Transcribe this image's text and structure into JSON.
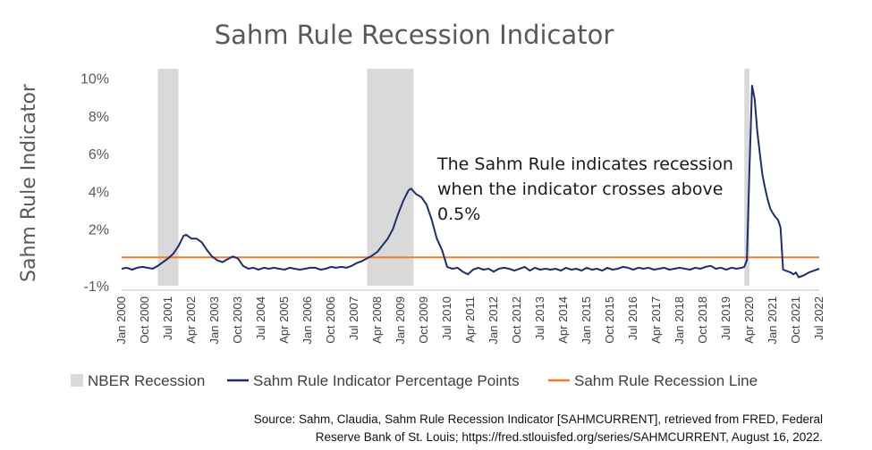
{
  "chart_data": {
    "type": "line",
    "title": "Sahm Rule Recession Indicator",
    "ylabel": "Sahm Rule Indicator",
    "xlabel": "",
    "ylim": [
      -1,
      10.5
    ],
    "yticks": [
      {
        "value": -1,
        "label": "-1%"
      },
      {
        "value": 2,
        "label": "2%"
      },
      {
        "value": 4,
        "label": "4%"
      },
      {
        "value": 6,
        "label": "6%"
      },
      {
        "value": 8,
        "label": "8%"
      },
      {
        "value": 10,
        "label": "10%"
      }
    ],
    "xticks": [
      "Jan 2000",
      "Oct 2000",
      "Jul 2001",
      "Apr 2002",
      "Jan 2003",
      "Oct 2003",
      "Jul 2004",
      "Apr 2005",
      "Jan 2006",
      "Oct 2006",
      "Jul 2007",
      "Apr 2008",
      "Jan 2009",
      "Oct 2009",
      "Jul 2010",
      "Apr 2011",
      "Jan 2012",
      "Oct 2012",
      "Jul 2013",
      "Apr 2014",
      "Jan 2015",
      "Oct 2015",
      "Jul 2016",
      "Apr 2017",
      "Jan 2018",
      "Oct 2018",
      "Jul 2019",
      "Apr 2020",
      "Jan 2021",
      "Oct 2021",
      "Jul 2022"
    ],
    "recessions": [
      {
        "start": "2001-03",
        "end": "2001-11"
      },
      {
        "start": "2007-12",
        "end": "2009-06"
      },
      {
        "start": "2020-02",
        "end": "2020-04"
      }
    ],
    "recession_line": 0.5,
    "series": [
      {
        "name": "Sahm Rule Indicator Percentage Points",
        "color": "#1f2d6b",
        "points": [
          [
            "2000-01",
            -0.1
          ],
          [
            "2000-03",
            -0.05
          ],
          [
            "2000-05",
            -0.15
          ],
          [
            "2000-07",
            -0.05
          ],
          [
            "2000-09",
            0.0
          ],
          [
            "2000-11",
            -0.05
          ],
          [
            "2001-01",
            -0.1
          ],
          [
            "2001-03",
            0.05
          ],
          [
            "2001-05",
            0.25
          ],
          [
            "2001-07",
            0.45
          ],
          [
            "2001-09",
            0.7
          ],
          [
            "2001-11",
            1.1
          ],
          [
            "2002-01",
            1.65
          ],
          [
            "2002-02",
            1.7
          ],
          [
            "2002-04",
            1.5
          ],
          [
            "2002-06",
            1.5
          ],
          [
            "2002-08",
            1.3
          ],
          [
            "2002-10",
            0.9
          ],
          [
            "2002-12",
            0.55
          ],
          [
            "2003-02",
            0.35
          ],
          [
            "2003-04",
            0.25
          ],
          [
            "2003-06",
            0.4
          ],
          [
            "2003-08",
            0.55
          ],
          [
            "2003-10",
            0.45
          ],
          [
            "2003-12",
            0.05
          ],
          [
            "2004-02",
            -0.1
          ],
          [
            "2004-04",
            -0.05
          ],
          [
            "2004-06",
            -0.15
          ],
          [
            "2004-08",
            -0.05
          ],
          [
            "2004-10",
            -0.1
          ],
          [
            "2004-12",
            -0.05
          ],
          [
            "2005-02",
            -0.1
          ],
          [
            "2005-04",
            -0.15
          ],
          [
            "2005-06",
            -0.05
          ],
          [
            "2005-08",
            -0.1
          ],
          [
            "2005-10",
            -0.15
          ],
          [
            "2005-12",
            -0.1
          ],
          [
            "2006-02",
            -0.05
          ],
          [
            "2006-04",
            -0.05
          ],
          [
            "2006-06",
            -0.15
          ],
          [
            "2006-08",
            -0.1
          ],
          [
            "2006-10",
            0.0
          ],
          [
            "2006-12",
            -0.05
          ],
          [
            "2007-02",
            0.0
          ],
          [
            "2007-04",
            -0.05
          ],
          [
            "2007-06",
            0.05
          ],
          [
            "2007-08",
            0.2
          ],
          [
            "2007-10",
            0.3
          ],
          [
            "2007-12",
            0.45
          ],
          [
            "2008-02",
            0.6
          ],
          [
            "2008-04",
            0.8
          ],
          [
            "2008-06",
            1.15
          ],
          [
            "2008-08",
            1.5
          ],
          [
            "2008-10",
            2.0
          ],
          [
            "2008-12",
            2.8
          ],
          [
            "2009-02",
            3.5
          ],
          [
            "2009-04",
            4.05
          ],
          [
            "2009-05",
            4.15
          ],
          [
            "2009-07",
            3.85
          ],
          [
            "2009-09",
            3.7
          ],
          [
            "2009-11",
            3.3
          ],
          [
            "2010-01",
            2.5
          ],
          [
            "2010-03",
            1.5
          ],
          [
            "2010-05",
            0.9
          ],
          [
            "2010-07",
            0.0
          ],
          [
            "2010-09",
            -0.1
          ],
          [
            "2010-11",
            -0.05
          ],
          [
            "2011-01",
            -0.25
          ],
          [
            "2011-03",
            -0.4
          ],
          [
            "2011-05",
            -0.15
          ],
          [
            "2011-07",
            -0.05
          ],
          [
            "2011-09",
            -0.15
          ],
          [
            "2011-11",
            -0.1
          ],
          [
            "2012-01",
            -0.25
          ],
          [
            "2012-03",
            -0.1
          ],
          [
            "2012-05",
            -0.05
          ],
          [
            "2012-07",
            -0.1
          ],
          [
            "2012-09",
            -0.2
          ],
          [
            "2012-11",
            -0.1
          ],
          [
            "2013-01",
            0.0
          ],
          [
            "2013-03",
            -0.2
          ],
          [
            "2013-05",
            -0.05
          ],
          [
            "2013-07",
            -0.15
          ],
          [
            "2013-09",
            -0.1
          ],
          [
            "2013-11",
            -0.15
          ],
          [
            "2014-01",
            -0.1
          ],
          [
            "2014-03",
            -0.2
          ],
          [
            "2014-05",
            -0.05
          ],
          [
            "2014-07",
            -0.15
          ],
          [
            "2014-09",
            -0.1
          ],
          [
            "2014-11",
            -0.2
          ],
          [
            "2015-01",
            -0.05
          ],
          [
            "2015-03",
            -0.15
          ],
          [
            "2015-05",
            -0.1
          ],
          [
            "2015-07",
            -0.2
          ],
          [
            "2015-09",
            -0.05
          ],
          [
            "2015-11",
            -0.15
          ],
          [
            "2016-01",
            -0.1
          ],
          [
            "2016-03",
            0.0
          ],
          [
            "2016-05",
            -0.05
          ],
          [
            "2016-07",
            -0.15
          ],
          [
            "2016-09",
            -0.05
          ],
          [
            "2016-11",
            -0.1
          ],
          [
            "2017-01",
            -0.05
          ],
          [
            "2017-03",
            -0.15
          ],
          [
            "2017-05",
            -0.1
          ],
          [
            "2017-07",
            -0.05
          ],
          [
            "2017-09",
            -0.15
          ],
          [
            "2017-11",
            -0.1
          ],
          [
            "2018-01",
            -0.05
          ],
          [
            "2018-03",
            -0.1
          ],
          [
            "2018-05",
            -0.15
          ],
          [
            "2018-07",
            -0.05
          ],
          [
            "2018-09",
            -0.1
          ],
          [
            "2018-11",
            0.0
          ],
          [
            "2019-01",
            0.05
          ],
          [
            "2019-03",
            -0.1
          ],
          [
            "2019-05",
            -0.05
          ],
          [
            "2019-07",
            -0.15
          ],
          [
            "2019-09",
            -0.05
          ],
          [
            "2019-11",
            -0.1
          ],
          [
            "2020-01",
            -0.05
          ],
          [
            "2020-02",
            0.0
          ],
          [
            "2020-03",
            0.35
          ],
          [
            "2020-04",
            5.2
          ],
          [
            "2020-05",
            9.6
          ],
          [
            "2020-06",
            8.9
          ],
          [
            "2020-07",
            7.2
          ],
          [
            "2020-08",
            6.0
          ],
          [
            "2020-09",
            4.9
          ],
          [
            "2020-10",
            4.2
          ],
          [
            "2020-11",
            3.6
          ],
          [
            "2020-12",
            3.1
          ],
          [
            "2021-01",
            2.85
          ],
          [
            "2021-02",
            2.65
          ],
          [
            "2021-03",
            2.5
          ],
          [
            "2021-04",
            2.1
          ],
          [
            "2021-05",
            -0.15
          ],
          [
            "2021-06",
            -0.2
          ],
          [
            "2021-08",
            -0.3
          ],
          [
            "2021-09",
            -0.4
          ],
          [
            "2021-10",
            -0.3
          ],
          [
            "2021-11",
            -0.55
          ],
          [
            "2022-01",
            -0.45
          ],
          [
            "2022-03",
            -0.3
          ],
          [
            "2022-05",
            -0.2
          ],
          [
            "2022-07",
            -0.1
          ]
        ]
      }
    ],
    "legend": [
      {
        "label": "NBER Recession",
        "color": "#d9d9d9",
        "kind": "box"
      },
      {
        "label": "Sahm Rule Indicator Percentage Points",
        "color": "#1f2d6b",
        "kind": "line"
      },
      {
        "label": "Sahm Rule Recession Line",
        "color": "#ed7d31",
        "kind": "line"
      }
    ],
    "annotation": [
      "The Sahm Rule indicates recession",
      "when the indicator crosses above",
      "0.5%"
    ],
    "legend_position": "bottom",
    "grid": false
  },
  "source": [
    "Source: Sahm, Claudia, Sahm Rule Recession Indicator [SAHMCURRENT], retrieved from FRED, Federal",
    "Reserve Bank of St. Louis; https://fred.stlouisfed.org/series/SAHMCURRENT, August 16, 2022."
  ],
  "colors": {
    "recession_shade": "#d9d9d9",
    "series_line": "#1f2d6b",
    "threshold_line": "#ed7d31",
    "axis": "#bfbfbf"
  }
}
